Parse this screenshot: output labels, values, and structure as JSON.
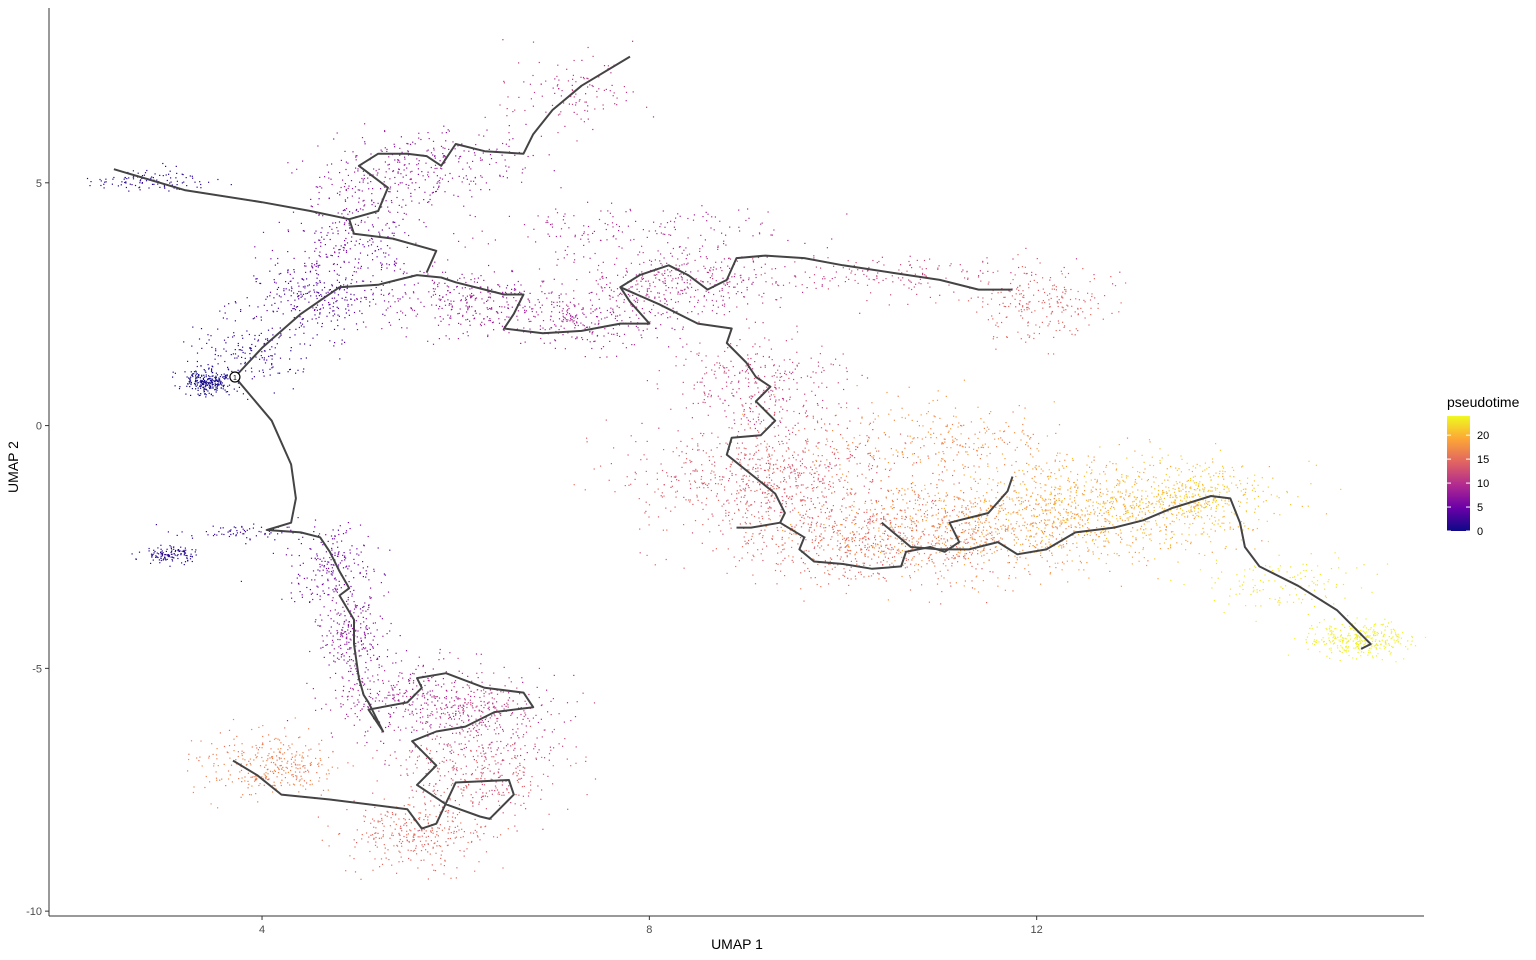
{
  "chart_data": {
    "type": "scatter",
    "xlabel": "UMAP 1",
    "ylabel": "UMAP 2",
    "xlim": [
      1.8,
      16.0
    ],
    "ylim": [
      -10.1,
      8.6
    ],
    "x_ticks": [
      4,
      8,
      12
    ],
    "y_ticks": [
      5,
      0,
      -5,
      -10
    ],
    "x_tick_labels": [
      "4",
      "8",
      "12"
    ],
    "y_tick_labels": [
      "5",
      "0",
      "-5",
      "-10"
    ],
    "grid": false,
    "legend": {
      "title": "pseudotime",
      "position": "right",
      "range": [
        0,
        24
      ],
      "ticks": [
        0,
        5,
        10,
        15,
        20
      ],
      "tick_labels": [
        "0",
        "5",
        "10",
        "15",
        "20"
      ],
      "colors": [
        "#0d0887",
        "#6a00a8",
        "#b12a90",
        "#e16462",
        "#fca636",
        "#f0f921"
      ]
    },
    "root_node_label": "1",
    "root_node": [
      3.72,
      1.0
    ],
    "trajectory": [
      {
        "name": "left-top-arm",
        "points": [
          [
            2.47,
            5.28
          ],
          [
            3.2,
            4.85
          ],
          [
            4.0,
            4.6
          ],
          [
            4.5,
            4.42
          ],
          [
            4.9,
            4.25
          ],
          [
            5.2,
            4.42
          ],
          [
            5.3,
            4.9
          ],
          [
            5.1,
            5.2
          ],
          [
            5.0,
            5.35
          ],
          [
            5.2,
            5.6
          ],
          [
            5.5,
            5.6
          ],
          [
            5.7,
            5.55
          ],
          [
            5.85,
            5.35
          ],
          [
            6.0,
            5.8
          ],
          [
            6.3,
            5.65
          ],
          [
            6.7,
            5.6
          ],
          [
            6.8,
            6.0
          ],
          [
            7.0,
            6.5
          ],
          [
            7.3,
            7.0
          ],
          [
            7.8,
            7.6
          ]
        ]
      },
      {
        "name": "upper-middle",
        "points": [
          [
            3.72,
            1.0
          ],
          [
            4.0,
            1.6
          ],
          [
            4.4,
            2.3
          ],
          [
            4.8,
            2.85
          ],
          [
            5.2,
            2.9
          ],
          [
            5.4,
            3.0
          ],
          [
            5.6,
            3.1
          ],
          [
            5.85,
            3.05
          ],
          [
            6.0,
            2.95
          ],
          [
            6.3,
            2.8
          ],
          [
            6.5,
            2.7
          ],
          [
            6.7,
            2.7
          ],
          [
            6.6,
            2.3
          ],
          [
            6.5,
            2.0
          ],
          [
            6.9,
            1.9
          ],
          [
            7.3,
            1.95
          ],
          [
            7.7,
            2.1
          ],
          [
            8.0,
            2.1
          ],
          [
            7.8,
            2.55
          ],
          [
            7.7,
            2.85
          ],
          [
            7.9,
            3.1
          ],
          [
            8.2,
            3.3
          ],
          [
            8.4,
            3.1
          ],
          [
            8.6,
            2.8
          ],
          [
            8.8,
            3.0
          ],
          [
            8.9,
            3.45
          ],
          [
            9.2,
            3.5
          ],
          [
            9.6,
            3.45
          ],
          [
            10.0,
            3.3
          ],
          [
            10.5,
            3.15
          ],
          [
            11.0,
            3.0
          ],
          [
            11.4,
            2.8
          ],
          [
            11.75,
            2.8
          ]
        ]
      },
      {
        "name": "upper-branch",
        "points": [
          [
            4.9,
            4.25
          ],
          [
            4.95,
            3.95
          ],
          [
            5.35,
            3.85
          ],
          [
            5.8,
            3.6
          ],
          [
            5.7,
            3.15
          ]
        ]
      },
      {
        "name": "central-descending",
        "points": [
          [
            7.7,
            2.85
          ],
          [
            8.1,
            2.5
          ],
          [
            8.5,
            2.1
          ],
          [
            8.85,
            2.0
          ],
          [
            8.8,
            1.7
          ],
          [
            9.0,
            1.3
          ],
          [
            9.1,
            1.0
          ],
          [
            9.25,
            0.8
          ],
          [
            9.1,
            0.5
          ],
          [
            9.3,
            0.1
          ],
          [
            9.15,
            -0.2
          ],
          [
            8.85,
            -0.25
          ],
          [
            8.8,
            -0.6
          ],
          [
            9.05,
            -1.0
          ],
          [
            9.3,
            -1.4
          ],
          [
            9.4,
            -1.8
          ],
          [
            9.35,
            -2.0
          ],
          [
            9.6,
            -2.3
          ],
          [
            9.55,
            -2.55
          ],
          [
            9.7,
            -2.8
          ],
          [
            10.0,
            -2.85
          ],
          [
            10.3,
            -2.95
          ],
          [
            10.6,
            -2.9
          ],
          [
            10.65,
            -2.6
          ],
          [
            10.9,
            -2.5
          ],
          [
            11.05,
            -2.6
          ],
          [
            11.2,
            -2.4
          ],
          [
            11.1,
            -2.0
          ],
          [
            11.5,
            -1.8
          ],
          [
            11.7,
            -1.35
          ],
          [
            11.75,
            -1.05
          ]
        ]
      },
      {
        "name": "lower-right-arm",
        "points": [
          [
            9.35,
            -2.0
          ],
          [
            9.05,
            -2.1
          ],
          [
            8.9,
            -2.1
          ]
        ]
      },
      {
        "name": "orange-arm",
        "points": [
          [
            10.4,
            -2.0
          ],
          [
            10.7,
            -2.5
          ],
          [
            11.0,
            -2.55
          ],
          [
            11.3,
            -2.55
          ],
          [
            11.6,
            -2.4
          ],
          [
            11.8,
            -2.65
          ],
          [
            12.1,
            -2.55
          ],
          [
            12.4,
            -2.2
          ],
          [
            12.8,
            -2.1
          ],
          [
            13.1,
            -1.95
          ],
          [
            13.4,
            -1.7
          ],
          [
            13.8,
            -1.45
          ],
          [
            14.0,
            -1.5
          ],
          [
            14.1,
            -2.0
          ],
          [
            14.15,
            -2.5
          ],
          [
            14.3,
            -2.9
          ],
          [
            14.7,
            -3.3
          ],
          [
            15.1,
            -3.8
          ],
          [
            15.3,
            -4.2
          ],
          [
            15.45,
            -4.5
          ],
          [
            15.35,
            -4.6
          ]
        ]
      },
      {
        "name": "lower-left-arm",
        "points": [
          [
            3.72,
            1.0
          ],
          [
            4.1,
            0.1
          ],
          [
            4.3,
            -0.8
          ],
          [
            4.35,
            -1.5
          ],
          [
            4.3,
            -2.0
          ],
          [
            4.05,
            -2.15
          ],
          [
            4.4,
            -2.2
          ],
          [
            4.6,
            -2.3
          ],
          [
            4.7,
            -2.6
          ],
          [
            4.8,
            -3.0
          ],
          [
            4.9,
            -3.35
          ],
          [
            4.8,
            -3.5
          ],
          [
            4.95,
            -4.0
          ],
          [
            4.95,
            -4.5
          ],
          [
            5.0,
            -5.2
          ],
          [
            5.05,
            -5.55
          ],
          [
            5.1,
            -5.7
          ],
          [
            5.25,
            -6.3
          ],
          [
            5.1,
            -5.85
          ],
          [
            5.5,
            -5.7
          ],
          [
            5.65,
            -5.4
          ],
          [
            5.6,
            -5.2
          ],
          [
            5.9,
            -5.1
          ],
          [
            6.3,
            -5.4
          ],
          [
            6.7,
            -5.5
          ],
          [
            6.8,
            -5.8
          ],
          [
            6.4,
            -5.9
          ],
          [
            6.1,
            -6.2
          ],
          [
            5.8,
            -6.3
          ],
          [
            5.55,
            -6.5
          ],
          [
            5.8,
            -7.0
          ],
          [
            5.6,
            -7.4
          ],
          [
            5.9,
            -7.8
          ],
          [
            6.25,
            -8.05
          ],
          [
            6.35,
            -8.1
          ],
          [
            6.6,
            -7.6
          ],
          [
            6.55,
            -7.3
          ],
          [
            6.0,
            -7.35
          ],
          [
            5.8,
            -8.2
          ],
          [
            5.65,
            -8.3
          ],
          [
            5.5,
            -7.9
          ],
          [
            4.7,
            -7.7
          ],
          [
            4.2,
            -7.6
          ],
          [
            3.95,
            -7.2
          ],
          [
            3.7,
            -6.9
          ]
        ]
      }
    ],
    "clusters": [
      {
        "cx": 2.85,
        "cy": 5.05,
        "sx": 0.3,
        "sy": 0.12,
        "n": 110,
        "t0": 0.8,
        "t1": 2.0
      },
      {
        "cx": 3.45,
        "cy": 0.9,
        "sx": 0.12,
        "sy": 0.12,
        "n": 260,
        "t0": 0.0,
        "t1": 0.8
      },
      {
        "cx": 3.85,
        "cy": 1.5,
        "sx": 0.3,
        "sy": 0.35,
        "n": 170,
        "t0": 1.0,
        "t1": 3.0
      },
      {
        "cx": 4.5,
        "cy": 2.6,
        "sx": 0.35,
        "sy": 0.35,
        "n": 240,
        "t0": 2.5,
        "t1": 4.5
      },
      {
        "cx": 4.9,
        "cy": 3.6,
        "sx": 0.35,
        "sy": 0.5,
        "n": 240,
        "t0": 4.5,
        "t1": 6.5
      },
      {
        "cx": 5.2,
        "cy": 4.9,
        "sx": 0.4,
        "sy": 0.5,
        "n": 240,
        "t0": 6.0,
        "t1": 8.5
      },
      {
        "cx": 5.9,
        "cy": 5.45,
        "sx": 0.45,
        "sy": 0.3,
        "n": 170,
        "t0": 7.0,
        "t1": 9.0
      },
      {
        "cx": 7.2,
        "cy": 6.8,
        "sx": 0.35,
        "sy": 0.4,
        "n": 120,
        "t0": 9.0,
        "t1": 12.0
      },
      {
        "cx": 6.1,
        "cy": 2.6,
        "sx": 0.5,
        "sy": 0.35,
        "n": 300,
        "t0": 7.0,
        "t1": 9.0
      },
      {
        "cx": 7.3,
        "cy": 2.15,
        "sx": 0.5,
        "sy": 0.3,
        "n": 280,
        "t0": 8.0,
        "t1": 9.5
      },
      {
        "cx": 8.3,
        "cy": 2.9,
        "sx": 0.5,
        "sy": 0.35,
        "n": 350,
        "t0": 9.0,
        "t1": 11.0
      },
      {
        "cx": 7.8,
        "cy": 4.0,
        "sx": 0.8,
        "sy": 0.3,
        "n": 170,
        "t0": 8.5,
        "t1": 10.0
      },
      {
        "cx": 10.5,
        "cy": 3.1,
        "sx": 0.9,
        "sy": 0.25,
        "n": 190,
        "t0": 10.5,
        "t1": 13.0
      },
      {
        "cx": 12.05,
        "cy": 2.5,
        "sx": 0.35,
        "sy": 0.35,
        "n": 220,
        "t0": 13.5,
        "t1": 15.0
      },
      {
        "cx": 9.1,
        "cy": 0.8,
        "sx": 0.45,
        "sy": 0.5,
        "n": 330,
        "t0": 10.5,
        "t1": 13.0
      },
      {
        "cx": 9.3,
        "cy": -1.1,
        "sx": 0.7,
        "sy": 0.6,
        "n": 800,
        "t0": 12.5,
        "t1": 15.0
      },
      {
        "cx": 10.3,
        "cy": -2.5,
        "sx": 0.7,
        "sy": 0.4,
        "n": 550,
        "t0": 13.5,
        "t1": 16.0
      },
      {
        "cx": 11.3,
        "cy": -2.1,
        "sx": 0.8,
        "sy": 0.5,
        "n": 700,
        "t0": 16.0,
        "t1": 19.0
      },
      {
        "cx": 12.6,
        "cy": -1.7,
        "sx": 0.7,
        "sy": 0.5,
        "n": 750,
        "t0": 18.0,
        "t1": 21.0
      },
      {
        "cx": 13.6,
        "cy": -1.5,
        "sx": 0.4,
        "sy": 0.4,
        "n": 400,
        "t0": 20.0,
        "t1": 22.0
      },
      {
        "cx": 11.0,
        "cy": -0.3,
        "sx": 0.7,
        "sy": 0.4,
        "n": 280,
        "t0": 16.0,
        "t1": 19.0
      },
      {
        "cx": 14.6,
        "cy": -3.2,
        "sx": 0.4,
        "sy": 0.3,
        "n": 130,
        "t0": 22.0,
        "t1": 23.5
      },
      {
        "cx": 15.3,
        "cy": -4.4,
        "sx": 0.25,
        "sy": 0.18,
        "n": 320,
        "t0": 23.0,
        "t1": 24.0
      },
      {
        "cx": 3.05,
        "cy": -2.65,
        "sx": 0.14,
        "sy": 0.08,
        "n": 130,
        "t0": 0.5,
        "t1": 2.0
      },
      {
        "cx": 3.9,
        "cy": -2.2,
        "sx": 0.35,
        "sy": 0.08,
        "n": 70,
        "t0": 1.0,
        "t1": 3.5
      },
      {
        "cx": 4.7,
        "cy": -2.9,
        "sx": 0.25,
        "sy": 0.4,
        "n": 200,
        "t0": 4.0,
        "t1": 6.5
      },
      {
        "cx": 4.95,
        "cy": -4.3,
        "sx": 0.18,
        "sy": 0.5,
        "n": 260,
        "t0": 6.0,
        "t1": 8.0
      },
      {
        "cx": 5.4,
        "cy": -5.6,
        "sx": 0.4,
        "sy": 0.4,
        "n": 300,
        "t0": 7.5,
        "t1": 10.0
      },
      {
        "cx": 6.3,
        "cy": -6.0,
        "sx": 0.4,
        "sy": 0.45,
        "n": 350,
        "t0": 9.5,
        "t1": 12.0
      },
      {
        "cx": 6.2,
        "cy": -7.2,
        "sx": 0.45,
        "sy": 0.45,
        "n": 330,
        "t0": 12.0,
        "t1": 14.5
      },
      {
        "cx": 5.6,
        "cy": -8.4,
        "sx": 0.35,
        "sy": 0.4,
        "n": 310,
        "t0": 14.0,
        "t1": 15.5
      },
      {
        "cx": 4.1,
        "cy": -7.0,
        "sx": 0.35,
        "sy": 0.3,
        "n": 320,
        "t0": 15.0,
        "t1": 17.5
      }
    ]
  }
}
